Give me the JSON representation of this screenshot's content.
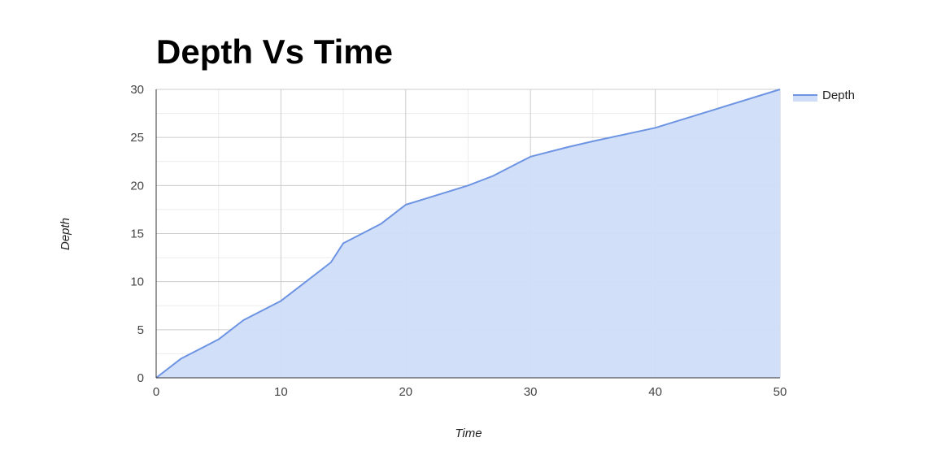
{
  "chart_data": {
    "type": "area",
    "title": "Depth Vs Time",
    "xlabel": "Time",
    "ylabel": "Depth",
    "xlim": [
      0,
      50
    ],
    "ylim": [
      0,
      30
    ],
    "x_ticks": [
      0,
      10,
      20,
      30,
      40,
      50
    ],
    "y_ticks": [
      0,
      5,
      10,
      15,
      20,
      25,
      30
    ],
    "grid": true,
    "legend_position": "right",
    "series": [
      {
        "name": "Depth",
        "color": "#6d94e3",
        "fill_color": "#cfddf8",
        "x": [
          0,
          2,
          5,
          7,
          10,
          12,
          14,
          15,
          18,
          20,
          25,
          27,
          30,
          33,
          35,
          40,
          45,
          50
        ],
        "y": [
          0,
          2,
          4,
          6,
          8,
          10,
          12,
          14,
          16,
          18,
          20,
          21,
          23,
          24,
          24.6,
          26,
          28,
          30
        ]
      }
    ]
  }
}
